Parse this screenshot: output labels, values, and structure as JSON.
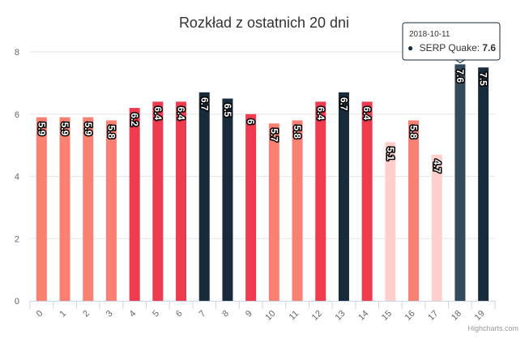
{
  "chart_data": {
    "type": "bar",
    "title": "Rozkład z ostatnich 20 dni",
    "xlabel": "",
    "ylabel": "",
    "categories": [
      "0",
      "1",
      "2",
      "3",
      "4",
      "5",
      "6",
      "7",
      "8",
      "9",
      "10",
      "11",
      "12",
      "13",
      "14",
      "15",
      "16",
      "17",
      "18",
      "19"
    ],
    "values": [
      5.9,
      5.9,
      5.9,
      5.8,
      6.2,
      6.4,
      6.4,
      6.7,
      6.5,
      6,
      5.7,
      5.8,
      6.4,
      6.7,
      6.4,
      5.1,
      5.8,
      4.7,
      7.6,
      7.5
    ],
    "bar_colors": [
      "#fa8072",
      "#fa8072",
      "#fa8072",
      "#fa8072",
      "#ee3b4f",
      "#ee3b4f",
      "#ee3b4f",
      "#182b3a",
      "#182b3a",
      "#ee3b4f",
      "#fa8072",
      "#fa8072",
      "#ee3b4f",
      "#182b3a",
      "#ee3b4f",
      "#ffcfcc",
      "#fa8072",
      "#ffcfcc",
      "#182b3a",
      "#182b3a"
    ],
    "highlighted_index": 18,
    "ylim": [
      0,
      8
    ],
    "yticks": [
      "0",
      "2",
      "4",
      "6",
      "8"
    ],
    "grid": true,
    "legend": "none"
  },
  "tooltip": {
    "date": "2018-10-11",
    "series_label": "SERP Quake: ",
    "value": "7.6",
    "bullet": "●"
  },
  "credits": "Highcharts.com"
}
